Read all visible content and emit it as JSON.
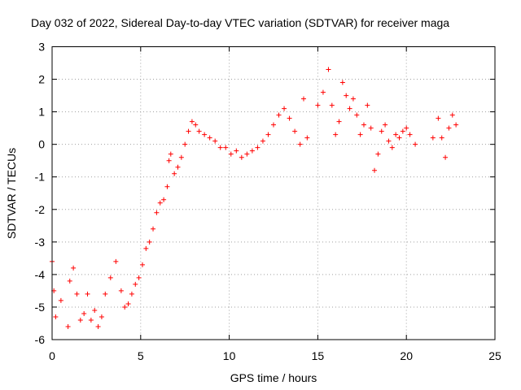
{
  "chart_data": {
    "type": "scatter",
    "title": "Day 032 of 2022, Sidereal Day-to-day VTEC variation (SDTVAR) for receiver maga",
    "xlabel": "GPS time / hours",
    "ylabel": "SDTVAR / TECUs",
    "xlim": [
      0,
      25
    ],
    "ylim": [
      -6,
      3
    ],
    "x_ticks": [
      0,
      5,
      10,
      15,
      20,
      25
    ],
    "x_tick_labels": [
      "0",
      "5",
      "10",
      "15",
      "20",
      "25"
    ],
    "y_ticks": [
      -6,
      -5,
      -4,
      -3,
      -2,
      -1,
      0,
      1,
      2,
      3
    ],
    "y_tick_labels": [
      "-6",
      "-5",
      "-4",
      "-3",
      "-2",
      "-1",
      "0",
      "1",
      "2",
      "3"
    ],
    "grid": true,
    "marker": "plus",
    "series": [
      {
        "name": "SDTVAR",
        "color": "#ff0000",
        "x": [
          0.0,
          0.1,
          0.2,
          0.5,
          0.9,
          1.0,
          1.2,
          1.4,
          1.6,
          1.8,
          2.0,
          2.2,
          2.4,
          2.6,
          2.8,
          3.0,
          3.3,
          3.6,
          3.9,
          4.1,
          4.3,
          4.5,
          4.7,
          4.9,
          5.1,
          5.3,
          5.5,
          5.7,
          5.9,
          6.1,
          6.3,
          6.5,
          6.6,
          6.7,
          6.9,
          7.1,
          7.3,
          7.5,
          7.7,
          7.9,
          8.1,
          8.3,
          8.6,
          8.9,
          9.2,
          9.5,
          9.8,
          10.1,
          10.4,
          10.7,
          11.0,
          11.3,
          11.6,
          11.9,
          12.2,
          12.5,
          12.8,
          13.1,
          13.4,
          13.7,
          14.0,
          14.2,
          14.4,
          15.0,
          15.3,
          15.6,
          15.8,
          16.0,
          16.2,
          16.4,
          16.6,
          16.8,
          17.0,
          17.2,
          17.4,
          17.6,
          17.8,
          18.0,
          18.2,
          18.4,
          18.6,
          18.8,
          19.0,
          19.2,
          19.4,
          19.6,
          19.8,
          20.0,
          20.2,
          20.5,
          21.5,
          21.8,
          22.0,
          22.2,
          22.4,
          22.6,
          22.8
        ],
        "y": [
          -3.6,
          -4.5,
          -5.3,
          -4.8,
          -5.6,
          -4.2,
          -3.8,
          -4.6,
          -5.4,
          -5.2,
          -4.6,
          -5.4,
          -5.1,
          -5.6,
          -5.3,
          -4.6,
          -4.1,
          -3.6,
          -4.5,
          -5.0,
          -4.9,
          -4.6,
          -4.3,
          -4.1,
          -3.7,
          -3.2,
          -3.0,
          -2.6,
          -2.1,
          -1.8,
          -1.7,
          -1.3,
          -0.5,
          -0.3,
          -0.9,
          -0.7,
          -0.4,
          0.0,
          0.4,
          0.7,
          0.6,
          0.4,
          0.3,
          0.2,
          0.1,
          -0.1,
          -0.1,
          -0.3,
          -0.2,
          -0.4,
          -0.3,
          -0.2,
          -0.1,
          0.1,
          0.3,
          0.6,
          0.9,
          1.1,
          0.8,
          0.4,
          0.0,
          1.4,
          0.2,
          1.2,
          1.6,
          2.3,
          1.2,
          0.3,
          0.7,
          1.9,
          1.5,
          1.1,
          1.4,
          0.9,
          0.3,
          0.6,
          1.2,
          0.5,
          -0.8,
          -0.3,
          0.4,
          0.6,
          0.1,
          -0.1,
          0.3,
          0.2,
          0.4,
          0.5,
          0.3,
          0.0,
          0.2,
          0.8,
          0.2,
          -0.4,
          0.5,
          0.9,
          0.6
        ]
      }
    ]
  }
}
